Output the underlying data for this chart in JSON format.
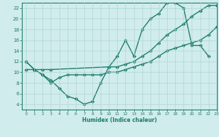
{
  "line1_x": [
    0,
    1,
    2,
    3,
    4,
    5,
    6,
    7,
    8,
    9,
    10,
    11,
    12,
    13,
    14,
    15,
    16,
    17,
    18,
    19,
    20,
    21,
    22
  ],
  "line1_y": [
    12,
    10.5,
    9.5,
    8.5,
    7.0,
    5.5,
    5.0,
    4.0,
    4.5,
    8.0,
    11.0,
    13.0,
    16.0,
    13.0,
    18.0,
    20.0,
    21.0,
    23.0,
    23.0,
    22.0,
    15.0,
    15.0,
    13.0
  ],
  "line2_x": [
    0,
    1,
    2,
    3,
    10,
    11,
    12,
    13,
    14,
    15,
    16,
    17,
    18,
    19,
    20,
    21,
    22,
    23
  ],
  "line2_y": [
    12.0,
    10.5,
    10.5,
    10.5,
    11.0,
    11.0,
    11.5,
    12.0,
    13.0,
    14.0,
    15.5,
    17.0,
    18.0,
    19.0,
    20.5,
    21.5,
    22.5,
    22.5
  ],
  "line3_x": [
    0,
    1,
    2,
    3,
    4,
    5,
    6,
    7,
    8,
    9,
    10,
    11,
    12,
    13,
    14,
    15,
    16,
    17,
    18,
    19,
    20,
    21,
    22,
    23
  ],
  "line3_y": [
    10.5,
    10.5,
    9.5,
    8.0,
    9.0,
    9.5,
    9.5,
    9.5,
    9.5,
    9.5,
    10.0,
    10.0,
    10.5,
    11.0,
    11.5,
    12.0,
    13.0,
    14.0,
    14.5,
    15.0,
    15.5,
    16.0,
    17.0,
    18.5
  ],
  "line_color": "#1a7a6a",
  "bg_color": "#d0ecec",
  "grid_color": "#aed4d4",
  "xlabel": "Humidex (Indice chaleur)",
  "xlim": [
    -0.5,
    23
  ],
  "ylim": [
    3,
    23
  ],
  "xticks": [
    0,
    1,
    2,
    3,
    4,
    5,
    6,
    7,
    8,
    9,
    10,
    11,
    12,
    13,
    14,
    15,
    16,
    17,
    18,
    19,
    20,
    21,
    22,
    23
  ],
  "yticks": [
    4,
    6,
    8,
    10,
    12,
    14,
    16,
    18,
    20,
    22
  ],
  "markersize": 2.5,
  "linewidth": 1.0
}
